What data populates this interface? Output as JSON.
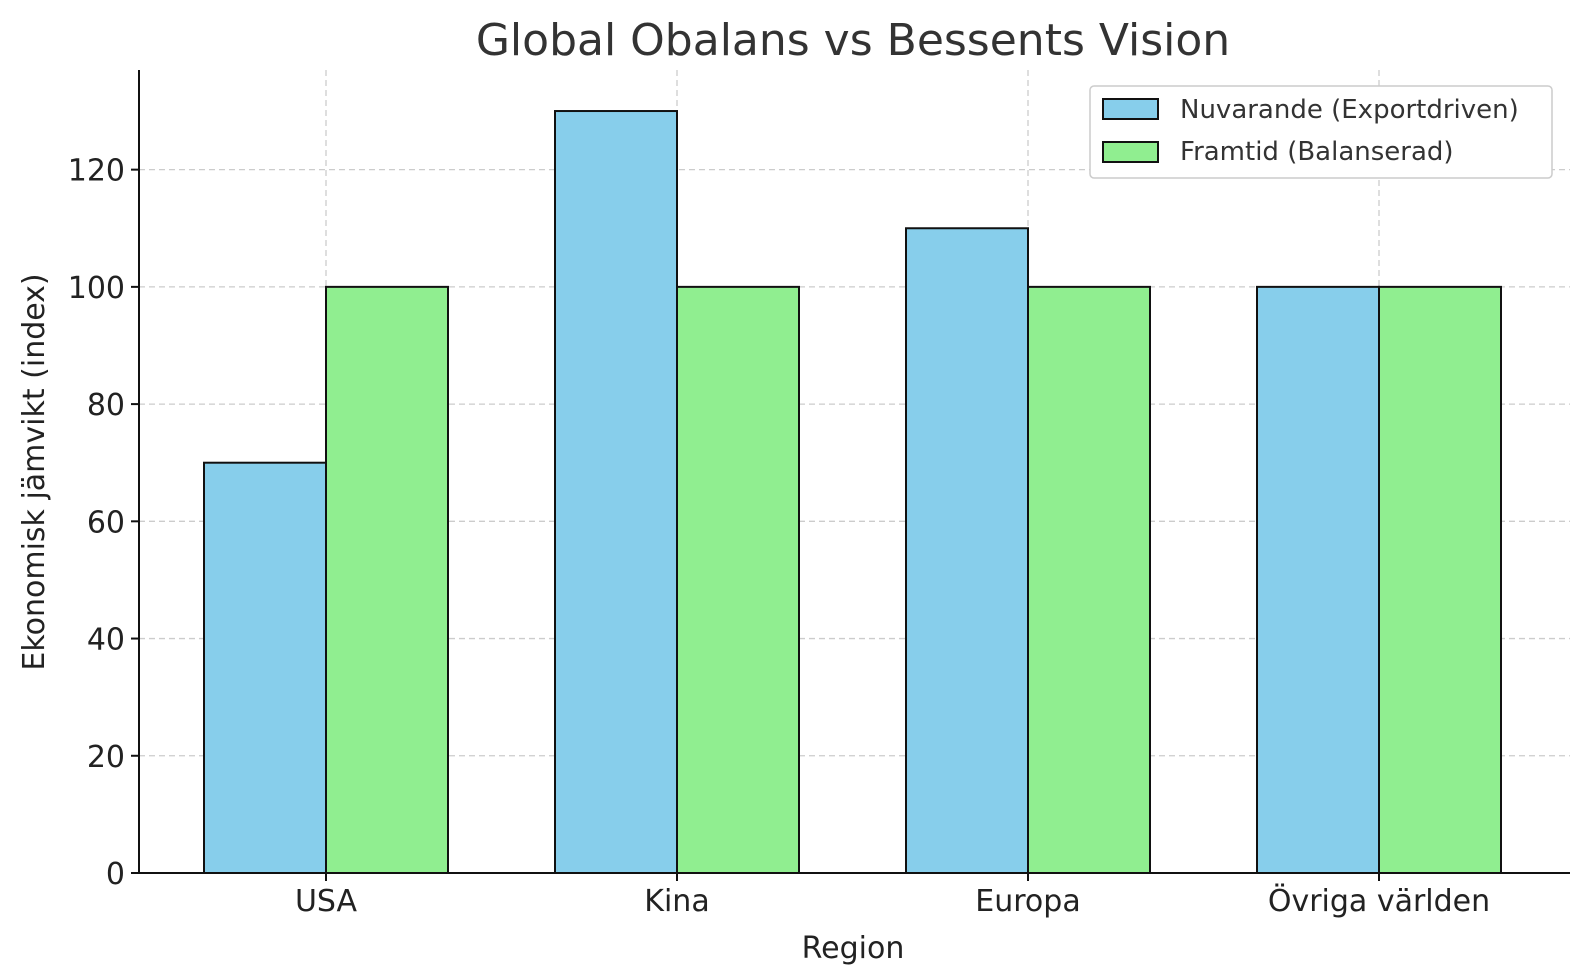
{
  "chart_data": {
    "type": "bar",
    "title": "Global Obalans vs Bessents Vision",
    "xlabel": "Region",
    "ylabel": "Ekonomisk jämvikt (index)",
    "categories": [
      "USA",
      "Kina",
      "Europa",
      "Övriga världen"
    ],
    "series": [
      {
        "name": "Nuvarande (Exportdriven)",
        "values": [
          70,
          130,
          110,
          100
        ],
        "color": "#87CEEB"
      },
      {
        "name": "Framtid (Balanserad)",
        "values": [
          100,
          100,
          100,
          100
        ],
        "color": "#90EE90"
      }
    ],
    "ylim": [
      0,
      137
    ],
    "yticks": [
      0,
      20,
      40,
      60,
      80,
      100,
      120
    ],
    "grid": true,
    "legend_position": "top-right"
  }
}
